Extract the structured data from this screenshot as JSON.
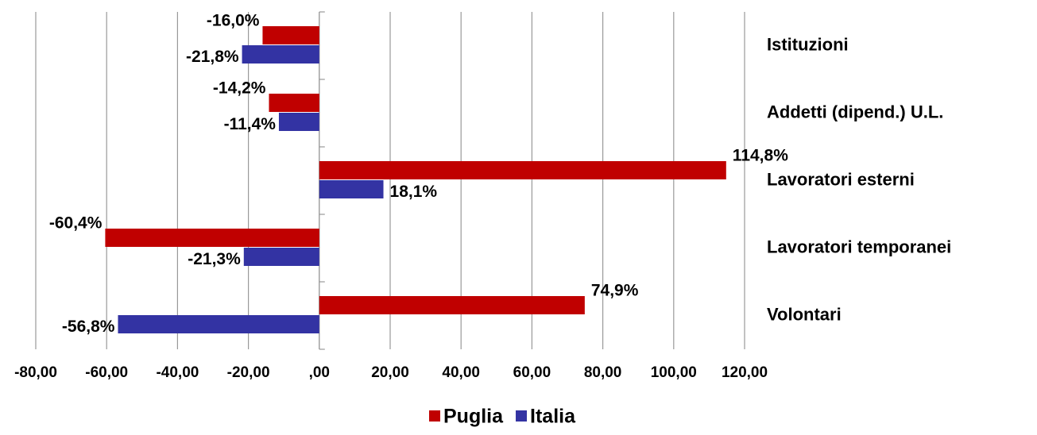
{
  "chart_data": {
    "type": "barh",
    "categories": [
      "Istituzioni",
      "Addetti (dipend.) U.L.",
      "Lavoratori esterni",
      "Lavoratori temporanei",
      "Volontari"
    ],
    "series": [
      {
        "name": "Puglia",
        "color": "#c00000",
        "values": [
          -16.0,
          -14.2,
          114.8,
          -60.4,
          74.9
        ],
        "value_labels": [
          "-16,0%",
          "-14,2%",
          "114,8%",
          "-60,4%",
          "74,9%"
        ]
      },
      {
        "name": "Italia",
        "color": "#3333a3",
        "values": [
          -21.8,
          -11.4,
          18.1,
          -21.3,
          -56.8
        ],
        "value_labels": [
          "-21,8%",
          "-11,4%",
          "18,1%",
          "-21,3%",
          "-56,8%"
        ]
      }
    ],
    "xlim": [
      -80,
      120
    ],
    "xticks": [
      {
        "value": -80,
        "label": "-80,00"
      },
      {
        "value": -60,
        "label": "-60,00"
      },
      {
        "value": -40,
        "label": "-40,00"
      },
      {
        "value": -20,
        "label": "-20,00"
      },
      {
        "value": 0,
        "label": ",00"
      },
      {
        "value": 20,
        "label": "20,00"
      },
      {
        "value": 40,
        "label": "40,00"
      },
      {
        "value": 60,
        "label": "60,00"
      },
      {
        "value": 80,
        "label": "80,00"
      },
      {
        "value": 100,
        "label": "100,00"
      },
      {
        "value": 120,
        "label": "120,00"
      }
    ],
    "grid": true,
    "legend": "bottom"
  }
}
